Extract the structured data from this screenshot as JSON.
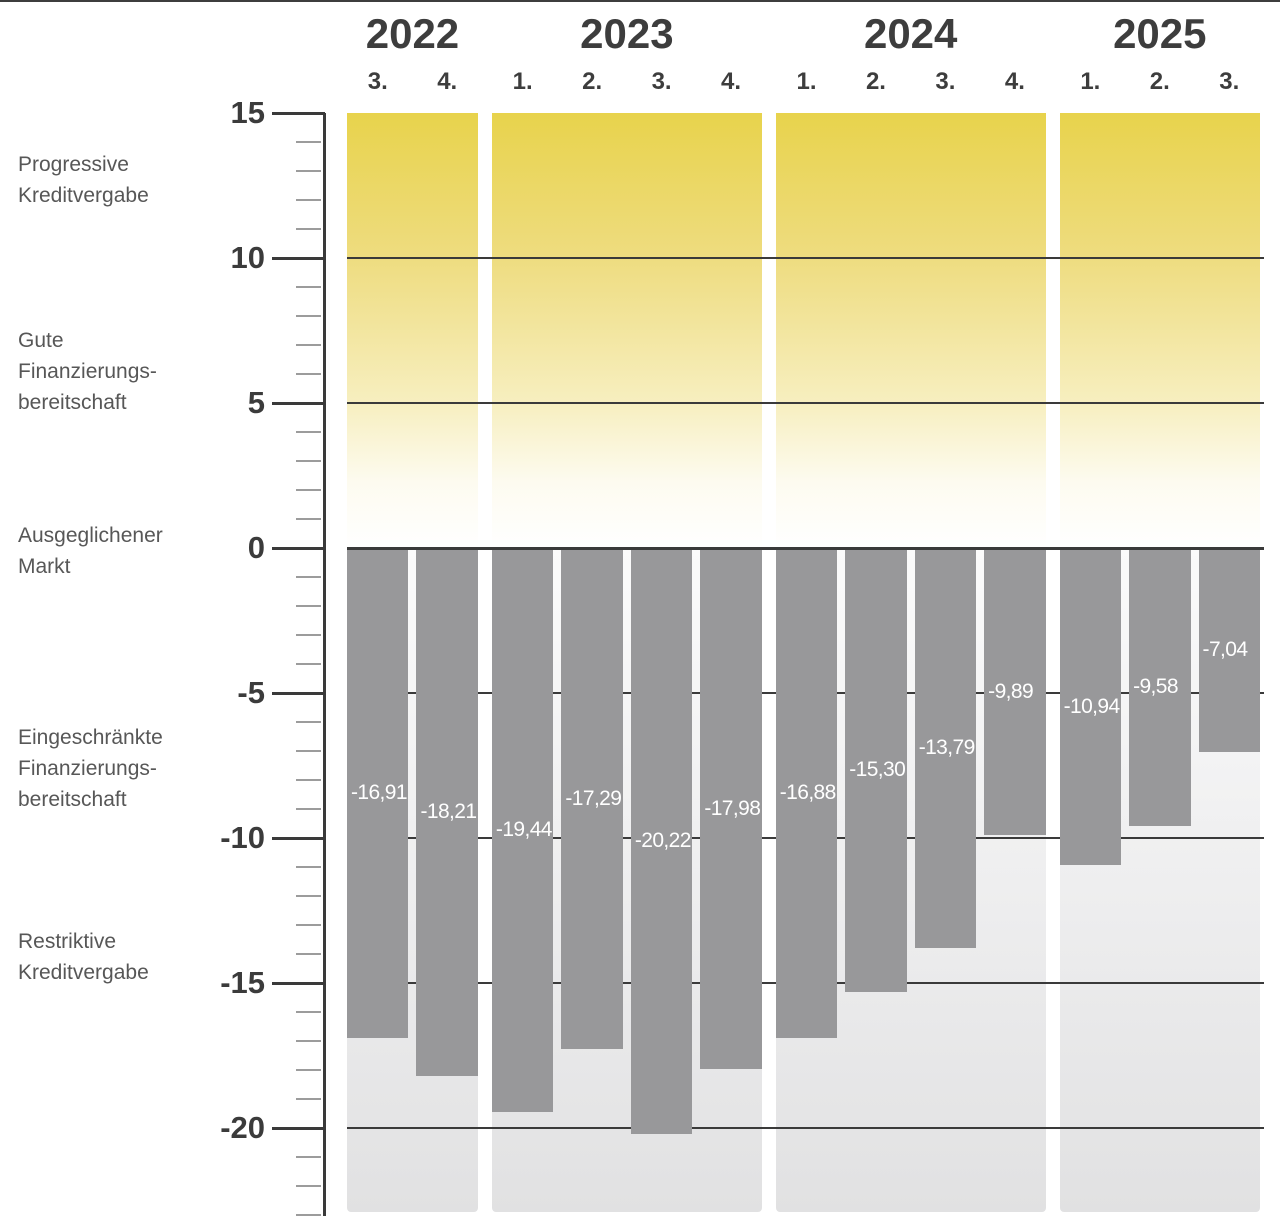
{
  "chart_data": {
    "type": "bar",
    "title": "",
    "x_structure": "quarters grouped by year",
    "ylim": [
      -23,
      15
    ],
    "y_major_ticks": [
      15,
      10,
      5,
      0,
      -5,
      -10,
      -15,
      -20
    ],
    "y_minor_step": 1,
    "gridline_values": [
      10,
      5,
      0,
      -5,
      -10,
      -15,
      -20
    ],
    "grid": true,
    "legend_position": "none",
    "groups": [
      {
        "year": "2022",
        "quarters": [
          "3.",
          "4."
        ],
        "values": [
          -16.91,
          -18.21
        ],
        "value_labels": [
          "-16,91",
          "-18,21"
        ]
      },
      {
        "year": "2023",
        "quarters": [
          "1.",
          "2.",
          "3.",
          "4."
        ],
        "values": [
          -19.44,
          -17.29,
          -20.22,
          -17.98
        ],
        "value_labels": [
          "-19,44",
          "-17,29",
          "-20,22",
          "-17,98"
        ]
      },
      {
        "year": "2024",
        "quarters": [
          "1.",
          "2.",
          "3.",
          "4."
        ],
        "values": [
          -16.88,
          -15.3,
          -13.79,
          -9.89
        ],
        "value_labels": [
          "-16,88",
          "-15,30",
          "-13,79",
          "-9,89"
        ]
      },
      {
        "year": "2025",
        "quarters": [
          "1.",
          "2.",
          "3."
        ],
        "values": [
          -10.94,
          -9.58,
          -7.04
        ],
        "value_labels": [
          "-10,94",
          "-9,58",
          "-7,04"
        ]
      }
    ],
    "zone_labels": [
      {
        "lines": [
          "Progressive",
          "Kreditvergabe"
        ],
        "center_value": 12.7
      },
      {
        "lines": [
          "Gute",
          "Finanzierungs-",
          "bereitschaft"
        ],
        "center_value": 6.1
      },
      {
        "lines": [
          "Ausgeglichener",
          "Markt"
        ],
        "center_value": -0.1
      },
      {
        "lines": [
          "Eingeschränkte",
          "Finanzierungs-",
          "bereitschaft"
        ],
        "center_value": -7.6
      },
      {
        "lines": [
          "Restriktive",
          "Kreditvergabe"
        ],
        "center_value": -14.1
      }
    ],
    "colors": {
      "bar": "#98989a",
      "bar_label": "#ffffff",
      "grid": "#3a3a3a",
      "axis": "#3a3a3a",
      "minor_tick": "#9c9c9c",
      "header_text": "#3d3d3d",
      "axis_text": "#3b3b3b",
      "zone_text": "#575757",
      "positive_gradient_top": "#e8d34c",
      "negative_gradient_bottom": "#e1e1e2",
      "top_border": "#3d3d3d"
    }
  }
}
